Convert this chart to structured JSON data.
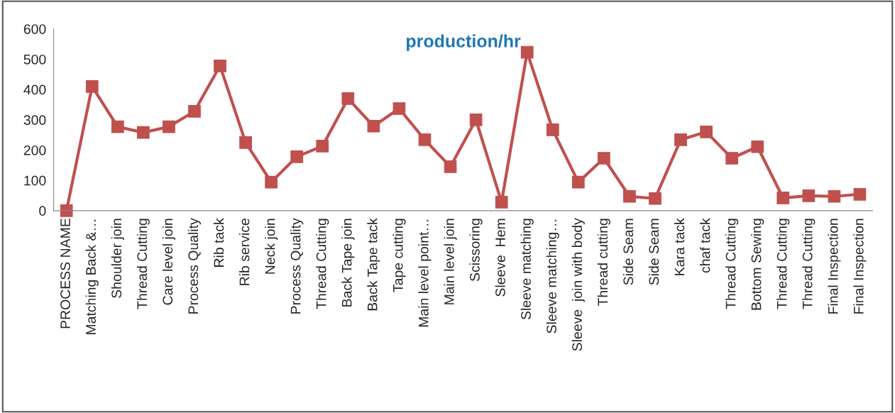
{
  "chart_data": {
    "type": "line",
    "title": "production/hr",
    "categories": [
      "PROCESS NAME",
      "Matching Back &…",
      "Shoulder join",
      "Thread Cutting",
      "Care level join",
      "Process Quality",
      "Rib tack",
      "Rib service",
      "Neck join",
      "Process Quality",
      "Thread Cutting",
      "Back Tape join",
      "Back Tape tack",
      "Tape cutting",
      "Main level point…",
      "Main level join",
      "Scissoring",
      "Sleeve  Hem",
      "Sleeve matching",
      "Sleeve matching…",
      "Sleeve  join with body",
      "Thread cutting",
      "Side Seam",
      "Side Seam",
      "Kara tack",
      "chaf tack",
      "Thread Cutting",
      "Bottom Sewing",
      "Thread Cutting",
      "Thread Cutting",
      "Final Inspection",
      "Final Inspection"
    ],
    "series": [
      {
        "color": "#c0504d",
        "values": [
          0,
          410,
          277,
          258,
          277,
          328,
          478,
          225,
          94,
          178,
          213,
          370,
          279,
          337,
          234,
          145,
          300,
          28,
          523,
          267,
          94,
          173,
          47,
          40,
          234,
          260,
          173,
          211,
          42,
          49,
          47,
          54
        ]
      }
    ],
    "ylim": [
      0,
      600
    ],
    "yticks": [
      0,
      100,
      200,
      300,
      400,
      500,
      600
    ],
    "grid": false,
    "marker": "square",
    "line_style": "solid"
  }
}
